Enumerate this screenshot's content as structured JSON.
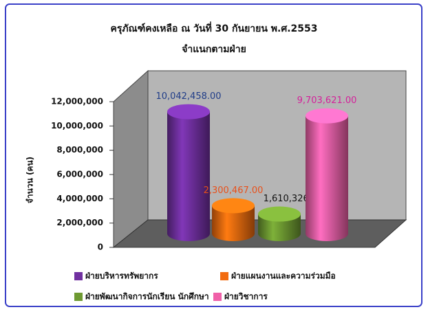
{
  "chart_data": {
    "type": "bar",
    "title": "ครุภัณฑ์คงเหลือ ณ วันที่ 30 กันยายน พ.ศ.2553",
    "subtitle": "จำแนกตามฝ่าย",
    "y_label": "จำนวน (คน)",
    "ylim": [
      0,
      12000000
    ],
    "yticks": [
      0,
      {
        "value": 2000000,
        "label": "2,000,000"
      },
      {
        "value": 4000000,
        "label": "4,000,000"
      },
      {
        "value": 6000000,
        "label": "6,000,000"
      },
      {
        "value": 8000000,
        "label": "8,000,000"
      },
      {
        "value": 10000000,
        "label": "10,000,000"
      },
      {
        "value": 12000000,
        "label": "12,000,000"
      }
    ],
    "series": [
      {
        "name": "ฝ่ายบริหารทรัพยากร",
        "color": "#7030a0",
        "label_color": "#1f3c88",
        "values": [
          10042458
        ],
        "value_labels": [
          "10,042,458.00"
        ]
      },
      {
        "name": "ฝ่ายแผนงานและความร่วมมือ",
        "color": "#f26b0f",
        "label_color": "#e8501a",
        "values": [
          2300467
        ],
        "value_labels": [
          "2,300,467.00"
        ]
      },
      {
        "name": "ฝ่ายพัฒนากิจการนักเรียน นักศึกษา",
        "color": "#6e9a32",
        "label_color": "#111111",
        "values": [
          1610326
        ],
        "value_labels": [
          "1,610,326.00"
        ]
      },
      {
        "name": "ฝ่ายวิชาการ",
        "color": "#f060a8",
        "label_color": "#d4209a",
        "values": [
          9703621
        ],
        "value_labels": [
          "9,703,621.00"
        ]
      }
    ]
  }
}
